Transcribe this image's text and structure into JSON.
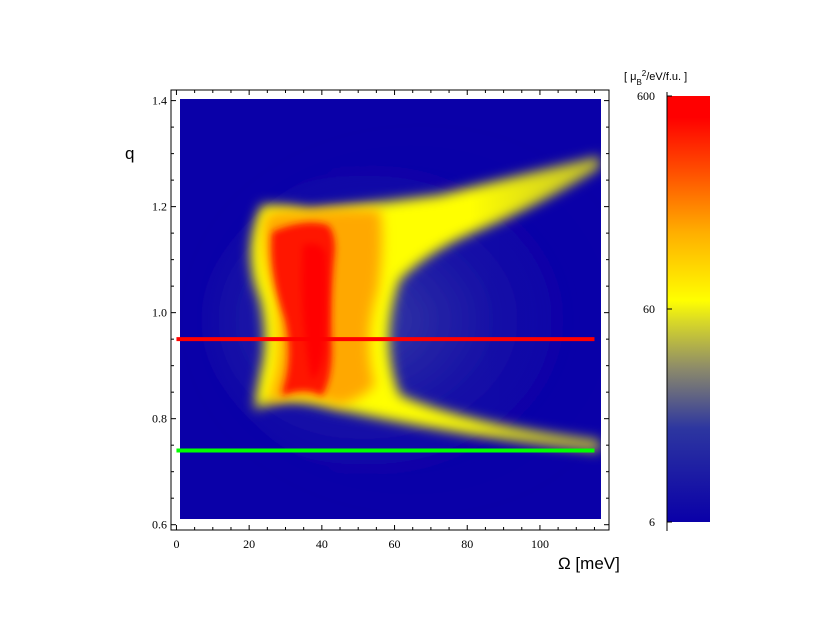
{
  "chart_data": {
    "type": "heatmap",
    "xlabel": "Ω [meV]",
    "ylabel": "q",
    "xlim": [
      -1.5,
      119
    ],
    "ylim": [
      0.59,
      1.42
    ],
    "plot_xrange": [
      0,
      115
    ],
    "plot_yrange": [
      0.6,
      1.4
    ],
    "x_ticks": [
      "0",
      "20",
      "40",
      "60",
      "80",
      "100"
    ],
    "y_ticks": [
      "0.6",
      "0.8",
      "1.0",
      "1.2",
      "1.4"
    ],
    "colorbar": {
      "unit_label": "[ μB²/eV/f.u. ]",
      "scale": "log",
      "range": [
        6,
        600
      ],
      "ticks": [
        "600",
        "60",
        "6"
      ],
      "colors": [
        "#0a00a8",
        "#2d36a0",
        "#8c8a6a",
        "#d8d828",
        "#ffff00",
        "#ffae00",
        "#ff5000",
        "#ff0000"
      ]
    },
    "annotations": [
      {
        "name": "red-cut",
        "orientation": "horizontal",
        "q": 0.95,
        "color": "#ff0000"
      },
      {
        "name": "green-cut",
        "orientation": "horizontal",
        "q": 0.74,
        "color": "#00ff00"
      }
    ],
    "features": {
      "background_color": "#0a00a8",
      "peak_color": "#ff0000",
      "high_color": "#ffff00",
      "lower_branch": [
        [
          20,
          0.8
        ],
        [
          40,
          0.79
        ],
        [
          60,
          0.77
        ],
        [
          80,
          0.75
        ],
        [
          100,
          0.73
        ],
        [
          115,
          0.72
        ]
      ],
      "upper_branch": [
        [
          20,
          1.2
        ],
        [
          40,
          1.19
        ],
        [
          60,
          1.22
        ],
        [
          80,
          1.25
        ],
        [
          100,
          1.27
        ],
        [
          115,
          1.28
        ]
      ],
      "peak_region": {
        "x": [
          25,
          45
        ],
        "q": [
          0.8,
          1.2
        ]
      }
    }
  }
}
